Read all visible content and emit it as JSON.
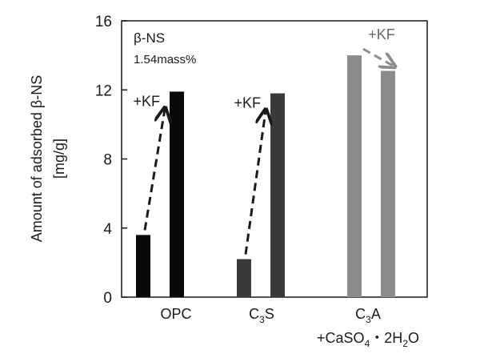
{
  "chart_data": {
    "type": "bar",
    "ylabel_line1": "Amount of adsorbed β-NS",
    "ylabel_line2": "[mg/g]",
    "ylim": [
      0,
      16
    ],
    "yticks": [
      "0",
      "4",
      "8",
      "12",
      "16"
    ],
    "grid": false,
    "legend": null,
    "inset_label_1": "β-NS",
    "inset_label_2": "1.54mass%",
    "groups": [
      {
        "category": "OPC",
        "color": "#0a0a0a",
        "values": [
          3.6,
          11.9
        ],
        "arrow_label": "+KF"
      },
      {
        "category": "C3S",
        "color": "#3a3a3a",
        "values": [
          2.2,
          11.8
        ],
        "arrow_label": "+KF"
      },
      {
        "category": "C3A +CaSO4·2H2O",
        "color": "#8c8c8c",
        "values": [
          14.0,
          13.1
        ],
        "arrow_label": "+KF"
      }
    ]
  }
}
